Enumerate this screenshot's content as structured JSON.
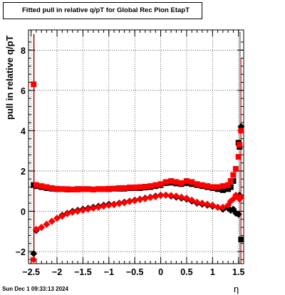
{
  "chart_data": {
    "type": "scatter",
    "title": "Fitted pull in relative q/pT for Global Rec Pion EtapT",
    "xlabel": "η",
    "ylabel": "pull in relative q/pT",
    "xlim": [
      -2.55,
      1.6
    ],
    "ylim": [
      -2.6,
      9.0
    ],
    "xticks": [
      -2.5,
      -2,
      -1.5,
      -1,
      -0.5,
      0,
      0.5,
      1,
      1.5
    ],
    "xtick_labels": [
      "−2.5",
      "−2",
      "−1.5",
      "−1",
      "−0.5",
      "0",
      "0.5",
      "1",
      "1.5"
    ],
    "yticks": [
      -2,
      0,
      2,
      4,
      6,
      8
    ],
    "ytick_labels": [
      "−2",
      "0",
      "2",
      "4",
      "6",
      "8"
    ],
    "grid": true,
    "colors": {
      "black_series": "#000000",
      "red_series": "#ff0000"
    },
    "series": [
      {
        "color": "black",
        "marker": "square",
        "x": [
          -2.45,
          -2.4,
          -2.3,
          -2.2,
          -2.1,
          -2.0,
          -1.9,
          -1.8,
          -1.7,
          -1.6,
          -1.5,
          -1.4,
          -1.3,
          -1.2,
          -1.1,
          -1.0,
          -0.9,
          -0.8,
          -0.7,
          -0.6,
          -0.5,
          -0.4,
          -0.3,
          -0.2,
          -0.1,
          0.0,
          0.1,
          0.2,
          0.3,
          0.4,
          0.5,
          0.6,
          0.7,
          0.8,
          0.9,
          1.0,
          1.1,
          1.2,
          1.3,
          1.35,
          1.4,
          1.45,
          1.5,
          1.52,
          1.55
        ],
        "y": [
          1.3,
          1.25,
          1.2,
          1.15,
          1.12,
          1.1,
          1.1,
          1.08,
          1.08,
          1.1,
          1.1,
          1.1,
          1.08,
          1.1,
          1.1,
          1.1,
          1.12,
          1.12,
          1.12,
          1.15,
          1.15,
          1.15,
          1.18,
          1.2,
          1.25,
          1.3,
          1.4,
          1.42,
          1.38,
          1.35,
          1.4,
          1.35,
          1.3,
          1.25,
          1.2,
          1.15,
          1.1,
          1.05,
          1.1,
          1.2,
          1.5,
          2.1,
          3.4,
          3.2,
          -1.4
        ]
      },
      {
        "color": "black",
        "marker": "diamond",
        "x": [
          -2.45,
          -2.4,
          -2.3,
          -2.2,
          -2.1,
          -2.0,
          -1.9,
          -1.8,
          -1.7,
          -1.6,
          -1.5,
          -1.4,
          -1.3,
          -1.2,
          -1.1,
          -1.0,
          -0.9,
          -0.8,
          -0.7,
          -0.6,
          -0.5,
          -0.4,
          -0.3,
          -0.2,
          -0.1,
          0.0,
          0.1,
          0.2,
          0.3,
          0.4,
          0.5,
          0.6,
          0.7,
          0.8,
          0.9,
          1.0,
          1.1,
          1.2,
          1.3,
          1.35,
          1.4,
          1.45,
          1.5,
          1.52,
          1.55
        ],
        "y": [
          -2.1,
          -0.95,
          -0.8,
          -0.65,
          -0.5,
          -0.35,
          -0.2,
          -0.1,
          0.0,
          0.05,
          0.1,
          0.15,
          0.2,
          0.25,
          0.3,
          0.35,
          0.35,
          0.4,
          0.45,
          0.5,
          0.55,
          0.6,
          0.65,
          0.7,
          0.75,
          0.8,
          0.8,
          0.75,
          0.7,
          0.65,
          0.6,
          0.5,
          0.4,
          0.35,
          0.3,
          0.25,
          0.2,
          0.1,
          0.15,
          0.05,
          0.1,
          -0.1,
          -0.15,
          0.8,
          4.2
        ]
      },
      {
        "color": "red",
        "marker": "square",
        "x": [
          -2.45,
          -2.4,
          -2.3,
          -2.2,
          -2.1,
          -2.0,
          -1.9,
          -1.8,
          -1.7,
          -1.6,
          -1.5,
          -1.4,
          -1.3,
          -1.2,
          -1.1,
          -1.0,
          -0.9,
          -0.8,
          -0.7,
          -0.6,
          -0.5,
          -0.4,
          -0.3,
          -0.2,
          -0.1,
          0.0,
          0.1,
          0.2,
          0.3,
          0.4,
          0.5,
          0.6,
          0.7,
          0.8,
          0.9,
          1.0,
          1.1,
          1.2,
          1.3,
          1.35,
          1.4,
          1.45,
          1.5,
          1.52,
          1.55
        ],
        "y": [
          6.3,
          1.3,
          1.25,
          1.2,
          1.15,
          1.12,
          1.1,
          1.1,
          1.08,
          1.08,
          1.1,
          1.1,
          1.08,
          1.1,
          1.1,
          1.12,
          1.12,
          1.15,
          1.15,
          1.18,
          1.18,
          1.2,
          1.22,
          1.25,
          1.3,
          1.35,
          1.45,
          1.5,
          1.45,
          1.4,
          1.5,
          1.45,
          1.35,
          1.3,
          1.25,
          1.2,
          1.2,
          1.25,
          1.3,
          1.5,
          1.8,
          2.1,
          2.7,
          3.3,
          4.0
        ]
      },
      {
        "color": "red",
        "marker": "diamond",
        "x": [
          -2.45,
          -2.4,
          -2.3,
          -2.2,
          -2.1,
          -2.0,
          -1.9,
          -1.8,
          -1.7,
          -1.6,
          -1.5,
          -1.4,
          -1.3,
          -1.2,
          -1.1,
          -1.0,
          -0.9,
          -0.8,
          -0.7,
          -0.6,
          -0.5,
          -0.4,
          -0.3,
          -0.2,
          -0.1,
          0.0,
          0.1,
          0.2,
          0.3,
          0.4,
          0.5,
          0.6,
          0.7,
          0.8,
          0.9,
          1.0,
          1.1,
          1.2,
          1.3,
          1.35,
          1.4,
          1.45,
          1.5,
          1.52,
          1.55
        ],
        "y": [
          -2.4,
          -0.9,
          -0.8,
          -0.65,
          -0.5,
          -0.35,
          -0.25,
          -0.12,
          -0.05,
          0.0,
          0.05,
          0.1,
          0.15,
          0.2,
          0.25,
          0.3,
          0.32,
          0.38,
          0.42,
          0.48,
          0.52,
          0.58,
          0.62,
          0.68,
          0.72,
          0.78,
          0.8,
          0.78,
          0.75,
          0.7,
          0.65,
          0.55,
          0.45,
          0.4,
          0.35,
          0.3,
          0.2,
          0.2,
          0.3,
          0.5,
          0.6,
          0.8,
          0.7,
          0.6,
          0.7
        ]
      }
    ]
  },
  "footer": {
    "timestamp": "Sun Dec  1 09:33:13 2024"
  }
}
